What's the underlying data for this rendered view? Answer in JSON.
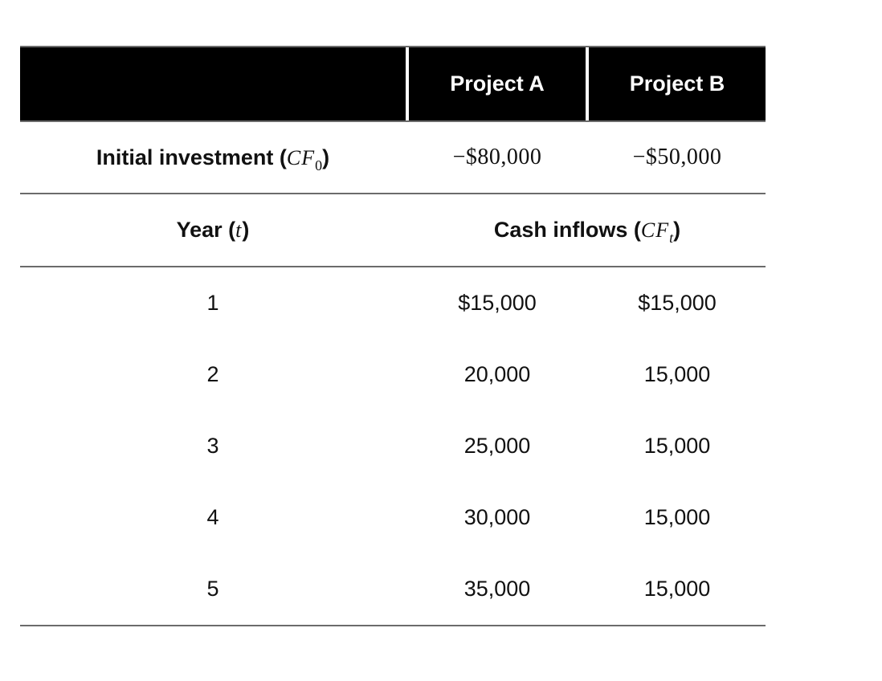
{
  "table": {
    "header": {
      "blank": "",
      "project_a": "Project A",
      "project_b": "Project B"
    },
    "initial_row": {
      "label_prefix": "Initial investment (",
      "label_math": "CF",
      "label_sub": "0",
      "label_suffix": ")",
      "project_a": "−$80,000",
      "project_b": "−$50,000"
    },
    "subheader": {
      "year_prefix": "Year (",
      "year_math": "t",
      "year_suffix": ")",
      "inflows_prefix": "Cash inflows (",
      "inflows_math": "CF",
      "inflows_sub": "t",
      "inflows_suffix": ")"
    },
    "rows": [
      {
        "year": "1",
        "a": "$15,000",
        "b": "$15,000"
      },
      {
        "year": "2",
        "a": "20,000",
        "b": "15,000"
      },
      {
        "year": "3",
        "a": "25,000",
        "b": "15,000"
      },
      {
        "year": "4",
        "a": "30,000",
        "b": "15,000"
      },
      {
        "year": "5",
        "a": "35,000",
        "b": "15,000"
      }
    ]
  },
  "colors": {
    "header_bg": "#000000",
    "header_text": "#ffffff",
    "rule": "#6b6b6b",
    "body_text": "#111111",
    "background": "#ffffff"
  }
}
